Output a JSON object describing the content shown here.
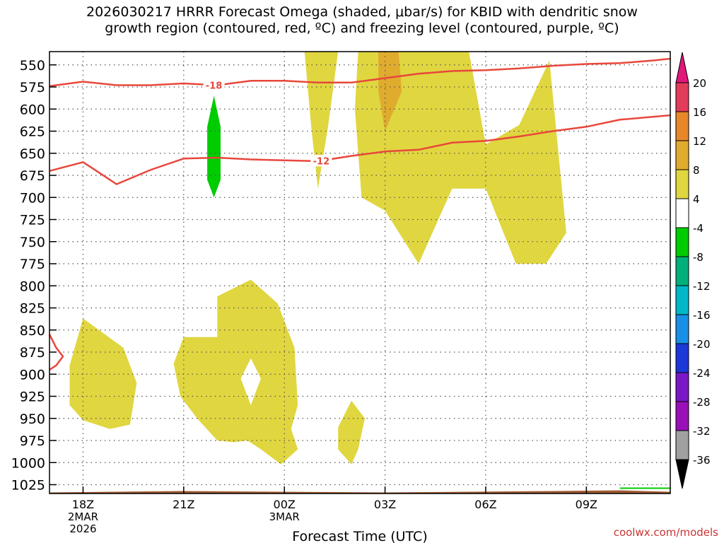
{
  "title": {
    "line1": "2026030217 HRRR Forecast Omega (shaded, μbar/s) for KBID with dendritic snow",
    "line2": "growth region (contoured, red, ºC) and freezing level (contoured, purple, ºC)"
  },
  "credit": "coolwx.com/models",
  "chart_data": {
    "type": "contour",
    "xlabel": "Forecast Time (UTC)",
    "ylabel": "",
    "x_ticks": [
      {
        "label": "18Z",
        "sub": [
          "2MAR",
          "2026"
        ],
        "hour": 0
      },
      {
        "label": "21Z",
        "sub": [
          "",
          ""
        ],
        "hour": 3
      },
      {
        "label": "00Z",
        "sub": [
          "3MAR",
          ""
        ],
        "hour": 6
      },
      {
        "label": "03Z",
        "sub": [
          "",
          ""
        ],
        "hour": 9
      },
      {
        "label": "06Z",
        "sub": [
          "",
          ""
        ],
        "hour": 12
      },
      {
        "label": "09Z",
        "sub": [
          "",
          ""
        ],
        "hour": 15
      }
    ],
    "xlim_hours": [
      -1,
      17.5
    ],
    "y_ticks": [
      550,
      575,
      600,
      625,
      650,
      675,
      700,
      725,
      750,
      775,
      800,
      825,
      850,
      875,
      900,
      925,
      950,
      975,
      1000,
      1025
    ],
    "ylim_hPa": [
      535,
      1035
    ],
    "grid": true,
    "colorbar": {
      "labels": [
        "20",
        "16",
        "12",
        "8",
        "4",
        "-4",
        "-8",
        "-12",
        "-16",
        "-20",
        "-24",
        "-28",
        "-32",
        "-36"
      ],
      "colors": [
        "#e23c5a",
        "#e8872a",
        "#e0ac2e",
        "#e0d640",
        "#ffffff",
        "#00cc00",
        "#00b07a",
        "#00b8c8",
        "#1890e8",
        "#1c38d8",
        "#7a18c8",
        "#9a10b8",
        "#a0a0a0"
      ],
      "top_color": "#e0187a",
      "bottom_color": "#000000"
    },
    "contours": [
      {
        "label": "-18",
        "label_hour": 3.9,
        "points": [
          [
            -1,
            574
          ],
          [
            0,
            569
          ],
          [
            1,
            573
          ],
          [
            2,
            573
          ],
          [
            3,
            571
          ],
          [
            4,
            573
          ],
          [
            5,
            568
          ],
          [
            6,
            568
          ],
          [
            7,
            570
          ],
          [
            8,
            570
          ],
          [
            9,
            565
          ],
          [
            10,
            560
          ],
          [
            11,
            557
          ],
          [
            12,
            556
          ],
          [
            13,
            554
          ],
          [
            14,
            551
          ],
          [
            15,
            549
          ],
          [
            16,
            548
          ],
          [
            17,
            545
          ],
          [
            17.5,
            543
          ]
        ]
      },
      {
        "label": "-12",
        "label_hour": 7.1,
        "points": [
          [
            -1,
            670
          ],
          [
            0,
            660
          ],
          [
            1,
            685
          ],
          [
            2,
            669
          ],
          [
            3,
            656
          ],
          [
            4,
            655
          ],
          [
            5,
            657
          ],
          [
            6,
            658
          ],
          [
            7,
            659
          ],
          [
            8,
            653
          ],
          [
            9,
            648
          ],
          [
            10,
            646
          ],
          [
            11,
            638
          ],
          [
            12,
            636
          ],
          [
            13,
            631
          ],
          [
            14,
            625
          ],
          [
            15,
            620
          ],
          [
            16,
            612
          ],
          [
            17.5,
            607
          ]
        ]
      },
      {
        "label": "",
        "label_hour": null,
        "points": [
          [
            -1,
            855
          ],
          [
            -0.8,
            870
          ],
          [
            -0.6,
            880
          ],
          [
            -0.8,
            890
          ],
          [
            -1,
            895
          ]
        ]
      }
    ],
    "shaded_regions": [
      {
        "value_range": "4 to 8",
        "color": "#e0d640",
        "points": [
          [
            -0.4,
            890
          ],
          [
            0,
            837
          ],
          [
            1.2,
            870
          ],
          [
            1.6,
            910
          ],
          [
            1.4,
            957
          ],
          [
            0.8,
            962
          ],
          [
            0,
            952
          ],
          [
            -0.4,
            935
          ]
        ]
      },
      {
        "value_range": "4 to 8",
        "color": "#e0d640",
        "points": [
          [
            2.7,
            888
          ],
          [
            3.0,
            858
          ],
          [
            4.0,
            858
          ],
          [
            4.0,
            812
          ],
          [
            5.0,
            793
          ],
          [
            5.8,
            820
          ],
          [
            6.3,
            870
          ],
          [
            6.4,
            935
          ],
          [
            6.2,
            962
          ],
          [
            6.4,
            985
          ],
          [
            5.9,
            1002
          ],
          [
            5.3,
            985
          ],
          [
            4.9,
            975
          ],
          [
            4.5,
            977
          ],
          [
            4.0,
            975
          ],
          [
            3.4,
            950
          ],
          [
            2.9,
            925
          ]
        ]
      },
      {
        "value_range": "4 to 8",
        "color": "#e0d640",
        "points": [
          [
            7.6,
            960
          ],
          [
            8.0,
            930
          ],
          [
            8.4,
            950
          ],
          [
            8.2,
            985
          ],
          [
            8.0,
            1002
          ],
          [
            7.6,
            985
          ]
        ]
      },
      {
        "value_range": "4 to 8",
        "color": "#e0d640",
        "points": [
          [
            6.6,
            535
          ],
          [
            7.6,
            535
          ],
          [
            7.3,
            620
          ],
          [
            7.0,
            690
          ],
          [
            6.8,
            620
          ]
        ]
      },
      {
        "value_range": "4 to 8",
        "color": "#e0d640",
        "points": [
          [
            8.2,
            535
          ],
          [
            11.5,
            535
          ],
          [
            12.0,
            640
          ],
          [
            13.0,
            618
          ],
          [
            13.9,
            545
          ],
          [
            14.4,
            740
          ],
          [
            13.8,
            775
          ],
          [
            12.9,
            775
          ],
          [
            12.0,
            690
          ],
          [
            11.0,
            690
          ],
          [
            10.0,
            775
          ],
          [
            9.0,
            715
          ],
          [
            8.3,
            700
          ],
          [
            8.1,
            600
          ]
        ]
      },
      {
        "value_range": "8 to 12",
        "color": "#e0ac2e",
        "points": [
          [
            8.8,
            535
          ],
          [
            9.4,
            535
          ],
          [
            9.5,
            580
          ],
          [
            9.0,
            625
          ],
          [
            8.8,
            580
          ]
        ]
      },
      {
        "value_range": "-8 to -4",
        "color": "#00cc00",
        "points": [
          [
            3.9,
            585
          ],
          [
            4.1,
            620
          ],
          [
            4.1,
            680
          ],
          [
            3.9,
            700
          ],
          [
            3.7,
            680
          ],
          [
            3.7,
            620
          ]
        ]
      },
      {
        "value_range": "white hole",
        "color": "#ffffff",
        "points": [
          [
            4.7,
            905
          ],
          [
            5.0,
            882
          ],
          [
            5.3,
            905
          ],
          [
            5.0,
            935
          ]
        ]
      }
    ],
    "terrain_hPa": 1033,
    "terrain_color": "#a05a32",
    "green_line": {
      "color": "#00cc00",
      "points": [
        [
          16.0,
          1029
        ],
        [
          17.5,
          1029
        ]
      ]
    }
  }
}
